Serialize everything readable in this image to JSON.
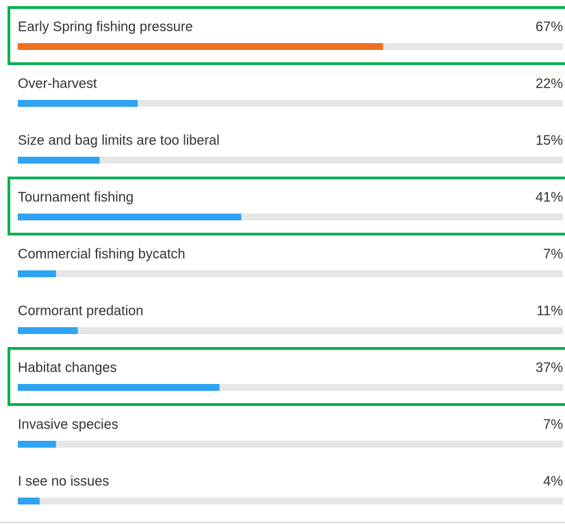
{
  "chart_data": {
    "type": "bar",
    "orientation": "horizontal",
    "categories": [
      "Early Spring fishing pressure",
      "Over-harvest",
      "Size and bag limits are too liberal",
      "Tournament fishing",
      "Commercial fishing bycatch",
      "Cormorant predation",
      "Habitat changes",
      "Invasive species",
      "I see no issues"
    ],
    "values": [
      67,
      22,
      15,
      41,
      7,
      11,
      37,
      7,
      4
    ],
    "value_labels": [
      "67%",
      "22%",
      "15%",
      "41%",
      "7%",
      "11%",
      "37%",
      "7%",
      "4%"
    ],
    "colors": [
      "#f07021",
      "#2ea3f2",
      "#2ea3f2",
      "#2ea3f2",
      "#2ea3f2",
      "#2ea3f2",
      "#2ea3f2",
      "#2ea3f2",
      "#2ea3f2"
    ],
    "highlighted": [
      true,
      false,
      false,
      true,
      false,
      false,
      true,
      false,
      false
    ],
    "highlight_color": "#00b050",
    "track_color": "#e6e6e6",
    "xlim": [
      0,
      100
    ]
  }
}
